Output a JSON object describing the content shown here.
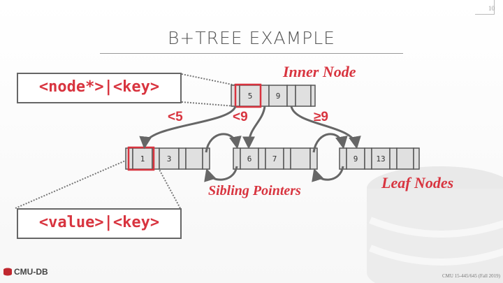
{
  "page_number": "10",
  "title": "B+TREE EXAMPLE",
  "inner_label_box": "<node*>|<key>",
  "leaf_label_box": "<value>|<key>",
  "annotations": {
    "inner_node": "Inner Node",
    "leaf_nodes": "Leaf Nodes",
    "sibling_pointers": "Sibling Pointers"
  },
  "comparisons": [
    "<5",
    "<9",
    "≥9"
  ],
  "inner_node_keys": [
    "5",
    "9"
  ],
  "leaf_nodes": [
    {
      "keys": [
        "1",
        "3"
      ]
    },
    {
      "keys": [
        "6",
        "7"
      ]
    },
    {
      "keys": [
        "9",
        "13"
      ]
    }
  ],
  "footer": {
    "logo_text": "CMU-DB",
    "course": "CMU 15-445/645 (Fall 2019)"
  },
  "colors": {
    "accent_red": "#d8343f",
    "node_fill": "#e0e0e0",
    "arrow_gray": "#666666"
  }
}
